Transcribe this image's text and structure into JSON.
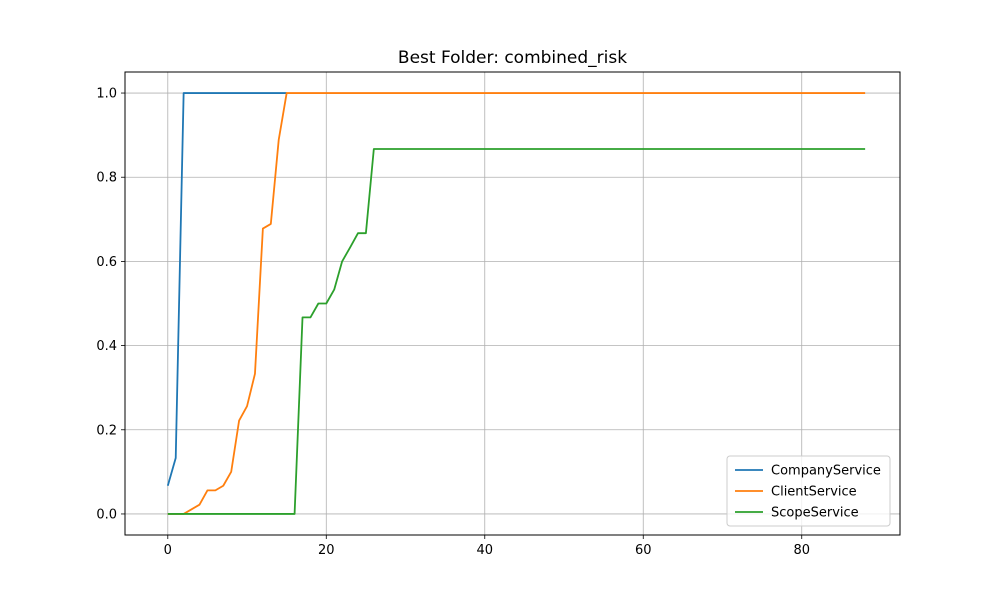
{
  "chart_data": {
    "type": "line",
    "title": "Best Folder: combined_risk",
    "xlabel": "",
    "ylabel": "",
    "xlim": [
      -5.4,
      92.4
    ],
    "ylim": [
      -0.05,
      1.05
    ],
    "xticks": [
      0,
      20,
      40,
      60,
      80
    ],
    "yticks": [
      0.0,
      0.2,
      0.4,
      0.6,
      0.8,
      1.0
    ],
    "xtick_labels": [
      "0",
      "20",
      "40",
      "60",
      "80"
    ],
    "ytick_labels": [
      "0.0",
      "0.2",
      "0.4",
      "0.6",
      "0.8",
      "1.0"
    ],
    "grid": true,
    "legend_position": "lower-right",
    "series": [
      {
        "name": "CompanyService",
        "color": "#1f77b4",
        "points": [
          [
            0,
            0.067
          ],
          [
            1,
            0.133
          ],
          [
            2,
            1.0
          ],
          [
            15,
            1.0
          ]
        ]
      },
      {
        "name": "ClientService",
        "color": "#ff7f0e",
        "points": [
          [
            0,
            0.0
          ],
          [
            2,
            0.0
          ],
          [
            3,
            0.011
          ],
          [
            4,
            0.022
          ],
          [
            5,
            0.056
          ],
          [
            6,
            0.056
          ],
          [
            7,
            0.067
          ],
          [
            8,
            0.1
          ],
          [
            9,
            0.222
          ],
          [
            10,
            0.256
          ],
          [
            11,
            0.333
          ],
          [
            12,
            0.678
          ],
          [
            13,
            0.689
          ],
          [
            14,
            0.889
          ],
          [
            15,
            1.0
          ],
          [
            88,
            1.0
          ]
        ]
      },
      {
        "name": "ScopeService",
        "color": "#2ca02c",
        "points": [
          [
            0,
            0.0
          ],
          [
            16,
            0.0
          ],
          [
            17,
            0.467
          ],
          [
            18,
            0.467
          ],
          [
            19,
            0.5
          ],
          [
            20,
            0.5
          ],
          [
            21,
            0.533
          ],
          [
            22,
            0.6
          ],
          [
            23,
            0.633
          ],
          [
            24,
            0.667
          ],
          [
            25,
            0.667
          ],
          [
            26,
            0.867
          ],
          [
            88,
            0.867
          ]
        ]
      }
    ]
  }
}
